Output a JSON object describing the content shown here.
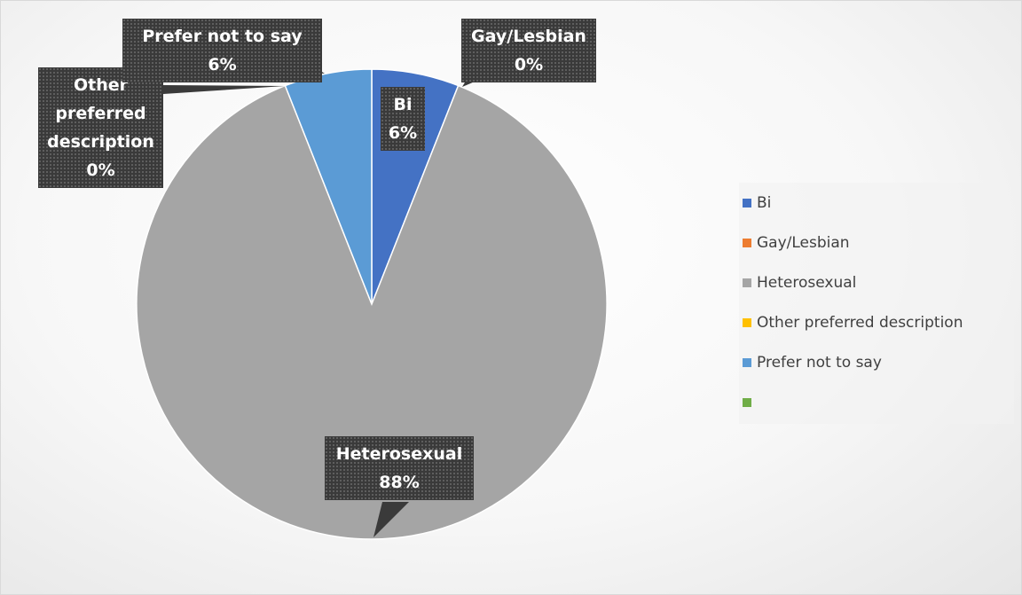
{
  "chart_data": {
    "type": "pie",
    "categories": [
      "Bi",
      "Gay/Lesbian",
      "Heterosexual",
      "Other preferred description",
      "Prefer not to say",
      null
    ],
    "values": [
      6,
      0,
      88,
      0,
      6,
      0
    ],
    "value_labels": [
      "6%",
      "0%",
      "88%",
      "0%",
      "6%",
      null
    ],
    "colors": [
      "#4472c4",
      "#ed7d31",
      "#a5a5a5",
      "#ffc000",
      "#5b9bd5",
      "#70ad47"
    ],
    "legend": "right"
  }
}
